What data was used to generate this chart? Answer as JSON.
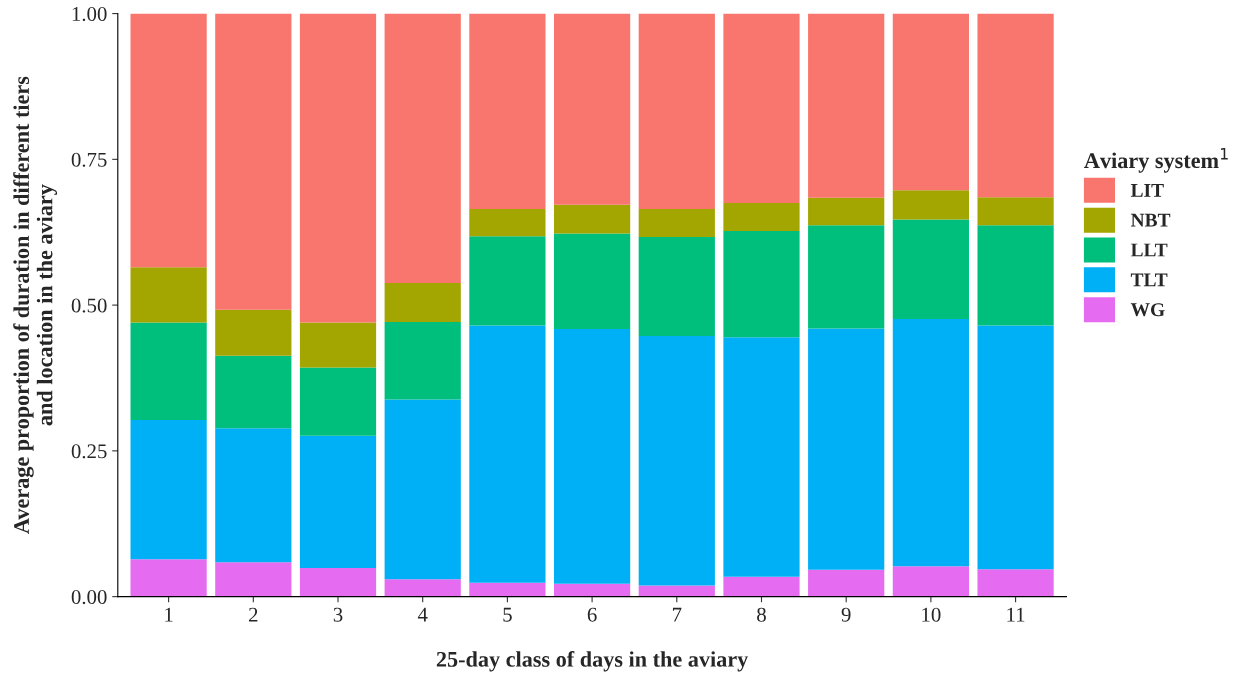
{
  "chart_data": {
    "type": "bar",
    "stacked": true,
    "xlabel": "25-day class of days in the aviary",
    "ylabel": "Average proportion of duration in different tiers\nand location in the aviary",
    "legend_title": "Aviary system$^{1}$",
    "categories": [
      "1",
      "2",
      "3",
      "4",
      "5",
      "6",
      "7",
      "8",
      "9",
      "10",
      "11"
    ],
    "series": [
      {
        "name": "WG",
        "color": "#e56cf0",
        "values": [
          0.064,
          0.059,
          0.049,
          0.03,
          0.024,
          0.022,
          0.019,
          0.034,
          0.046,
          0.052,
          0.047
        ]
      },
      {
        "name": "TLT",
        "color": "#00b0f6",
        "values": [
          0.239,
          0.23,
          0.227,
          0.308,
          0.441,
          0.437,
          0.428,
          0.411,
          0.414,
          0.424,
          0.418
        ]
      },
      {
        "name": "LLT",
        "color": "#00bf7d",
        "values": [
          0.167,
          0.124,
          0.117,
          0.133,
          0.153,
          0.164,
          0.17,
          0.182,
          0.177,
          0.171,
          0.172
        ]
      },
      {
        "name": "NBT",
        "color": "#a3a500",
        "values": [
          0.095,
          0.079,
          0.077,
          0.067,
          0.047,
          0.049,
          0.048,
          0.048,
          0.047,
          0.05,
          0.048
        ]
      },
      {
        "name": "LIT",
        "color": "#f8766d",
        "values": [
          0.435,
          0.508,
          0.53,
          0.462,
          0.335,
          0.328,
          0.335,
          0.325,
          0.316,
          0.303,
          0.315
        ]
      }
    ],
    "ylim": [
      0,
      1
    ],
    "yticks": [
      {
        "value": 0,
        "label": "0.00"
      },
      {
        "value": 0.25,
        "label": "0.25"
      },
      {
        "value": 0.5,
        "label": "0.50"
      },
      {
        "value": 0.75,
        "label": "0.75"
      },
      {
        "value": 1,
        "label": "1.00"
      }
    ],
    "legend": "right"
  }
}
